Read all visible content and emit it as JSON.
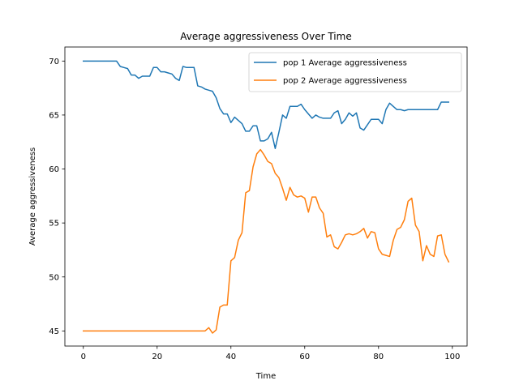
{
  "chart_data": {
    "type": "line",
    "title": "Average aggressiveness Over Time",
    "xlabel": "Time",
    "ylabel": "Average aggressiveness",
    "xlim": [
      -5,
      104
    ],
    "ylim": [
      43.6,
      71.3
    ],
    "xticks": [
      0,
      20,
      40,
      60,
      80,
      100
    ],
    "yticks": [
      45,
      50,
      55,
      60,
      65,
      70
    ],
    "grid": false,
    "legend_position": "top-right",
    "series": [
      {
        "name": "pop 1 Average aggressiveness",
        "color": "#1f77b4",
        "values": [
          70.0,
          70.0,
          70.0,
          70.0,
          70.0,
          70.0,
          70.0,
          70.0,
          70.0,
          70.0,
          69.5,
          69.4,
          69.3,
          68.7,
          68.7,
          68.4,
          68.6,
          68.6,
          68.6,
          69.4,
          69.4,
          69.0,
          69.0,
          68.9,
          68.8,
          68.4,
          68.2,
          69.5,
          69.4,
          69.4,
          69.4,
          67.7,
          67.6,
          67.4,
          67.3,
          67.2,
          66.6,
          65.6,
          65.1,
          65.1,
          64.3,
          64.8,
          64.5,
          64.2,
          63.5,
          63.5,
          64.0,
          64.0,
          62.6,
          62.6,
          62.8,
          63.4,
          61.9,
          63.4,
          65.0,
          64.7,
          65.8,
          65.8,
          65.8,
          66.0,
          65.5,
          65.1,
          64.7,
          65.0,
          64.8,
          64.7,
          64.7,
          64.7,
          65.2,
          65.4,
          64.2,
          64.6,
          65.2,
          64.9,
          65.2,
          63.8,
          63.6,
          64.1,
          64.6,
          64.6,
          64.6,
          64.2,
          65.5,
          66.1,
          65.8,
          65.5,
          65.5,
          65.4,
          65.5,
          65.5,
          65.5,
          65.5,
          65.5,
          65.5,
          65.5,
          65.5,
          65.5,
          66.2,
          66.2,
          66.2
        ]
      },
      {
        "name": "pop 2 Average aggressiveness",
        "color": "#ff7f0e",
        "values": [
          45.0,
          45.0,
          45.0,
          45.0,
          45.0,
          45.0,
          45.0,
          45.0,
          45.0,
          45.0,
          45.0,
          45.0,
          45.0,
          45.0,
          45.0,
          45.0,
          45.0,
          45.0,
          45.0,
          45.0,
          45.0,
          45.0,
          45.0,
          45.0,
          45.0,
          45.0,
          45.0,
          45.0,
          45.0,
          45.0,
          45.0,
          45.0,
          45.0,
          45.0,
          45.3,
          44.8,
          45.1,
          47.2,
          47.4,
          47.4,
          51.5,
          51.8,
          53.4,
          54.1,
          57.8,
          58.0,
          60.2,
          61.4,
          61.8,
          61.3,
          60.7,
          60.5,
          59.6,
          59.2,
          58.2,
          57.1,
          58.3,
          57.6,
          57.4,
          57.5,
          57.3,
          56.0,
          57.4,
          57.4,
          56.4,
          55.9,
          53.7,
          53.9,
          52.8,
          52.6,
          53.2,
          53.9,
          54.0,
          53.9,
          54.0,
          54.2,
          54.5,
          53.6,
          54.2,
          54.1,
          52.6,
          52.1,
          52.0,
          51.9,
          53.4,
          54.4,
          54.6,
          55.3,
          57.0,
          57.3,
          54.8,
          54.2,
          51.5,
          52.9,
          52.1,
          51.9,
          53.8,
          53.9,
          52.1,
          51.4
        ]
      }
    ]
  }
}
